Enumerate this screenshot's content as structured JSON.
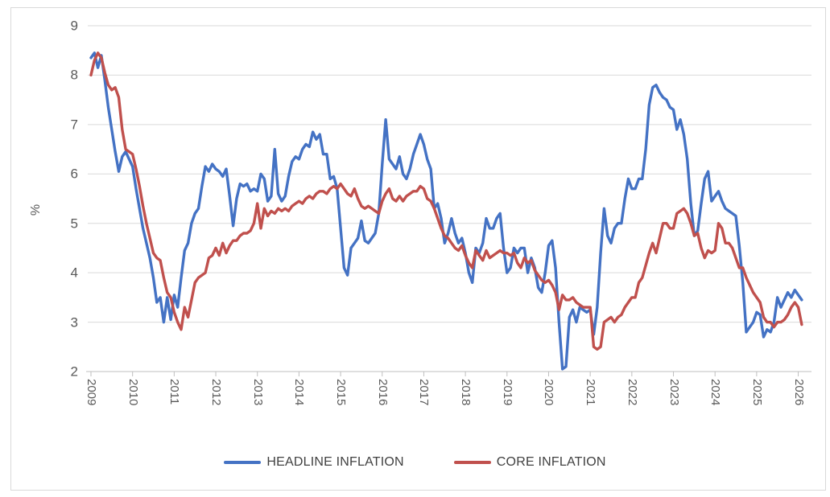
{
  "chart_data": {
    "type": "line",
    "title": "",
    "ylabel": "%",
    "x_start": "2009-01",
    "frequency": "monthly",
    "x_tick_labels": [
      "2009",
      "2010",
      "2011",
      "2012",
      "2013",
      "2014",
      "2015",
      "2016",
      "2017",
      "2018",
      "2019",
      "2020",
      "2021",
      "2022",
      "2023",
      "2024",
      "2025",
      "2026"
    ],
    "y_ticks": [
      2,
      3,
      4,
      5,
      6,
      7,
      8,
      9
    ],
    "ylim": [
      2,
      9
    ],
    "grid": "horizontal",
    "legend_position": "bottom",
    "series": [
      {
        "name": "HEADLINE INFLATION",
        "color": "#4472C4",
        "values": [
          8.35,
          8.45,
          8.15,
          8.4,
          7.9,
          7.35,
          6.9,
          6.45,
          6.05,
          6.35,
          6.45,
          6.3,
          6.15,
          5.7,
          5.3,
          4.9,
          4.6,
          4.3,
          3.9,
          3.4,
          3.5,
          3.0,
          3.5,
          3.05,
          3.55,
          3.3,
          3.9,
          4.45,
          4.6,
          5.0,
          5.2,
          5.3,
          5.75,
          6.15,
          6.05,
          6.2,
          6.1,
          6.05,
          5.95,
          6.1,
          5.55,
          4.95,
          5.5,
          5.8,
          5.75,
          5.8,
          5.65,
          5.7,
          5.65,
          6.0,
          5.9,
          5.45,
          5.55,
          6.5,
          5.6,
          5.45,
          5.55,
          5.95,
          6.25,
          6.35,
          6.3,
          6.5,
          6.6,
          6.55,
          6.85,
          6.7,
          6.8,
          6.4,
          6.4,
          5.9,
          5.95,
          5.7,
          4.9,
          4.1,
          3.95,
          4.5,
          4.6,
          4.7,
          5.05,
          4.65,
          4.6,
          4.7,
          4.8,
          5.2,
          6.2,
          7.1,
          6.3,
          6.2,
          6.1,
          6.35,
          6.0,
          5.9,
          6.1,
          6.4,
          6.6,
          6.8,
          6.6,
          6.3,
          6.1,
          5.3,
          5.4,
          5.1,
          4.6,
          4.8,
          5.1,
          4.8,
          4.6,
          4.7,
          4.4,
          4.0,
          3.8,
          4.5,
          4.4,
          4.6,
          5.1,
          4.9,
          4.9,
          5.1,
          5.2,
          4.5,
          4.0,
          4.1,
          4.5,
          4.4,
          4.5,
          4.5,
          4.0,
          4.3,
          4.1,
          3.7,
          3.6,
          4.0,
          4.55,
          4.65,
          4.1,
          3.0,
          2.05,
          2.1,
          3.1,
          3.25,
          3.0,
          3.3,
          3.25,
          3.2,
          3.25,
          2.75,
          3.3,
          4.4,
          5.3,
          4.75,
          4.6,
          4.9,
          5.0,
          5.0,
          5.5,
          5.9,
          5.7,
          5.7,
          5.9,
          5.9,
          6.5,
          7.4,
          7.75,
          7.8,
          7.65,
          7.55,
          7.5,
          7.35,
          7.3,
          6.9,
          7.1,
          6.8,
          6.3,
          5.4,
          4.75,
          4.85,
          5.4,
          5.9,
          6.05,
          5.45,
          5.55,
          5.65,
          5.45,
          5.3,
          5.25,
          5.2,
          5.15,
          4.55,
          3.8,
          2.8,
          2.9,
          3.0,
          3.2,
          3.15,
          2.7,
          2.85,
          2.8,
          3.0,
          3.5,
          3.3,
          3.45,
          3.6,
          3.5,
          3.65,
          3.55,
          3.45
        ]
      },
      {
        "name": "CORE INFLATION",
        "color": "#C0504D",
        "values": [
          8.0,
          8.3,
          8.45,
          8.35,
          8.05,
          7.8,
          7.7,
          7.75,
          7.55,
          6.9,
          6.5,
          6.45,
          6.4,
          6.1,
          5.75,
          5.35,
          5.0,
          4.7,
          4.4,
          4.3,
          4.25,
          3.9,
          3.6,
          3.5,
          3.2,
          3.0,
          2.85,
          3.3,
          3.1,
          3.45,
          3.8,
          3.9,
          3.95,
          4.0,
          4.3,
          4.35,
          4.5,
          4.35,
          4.6,
          4.4,
          4.55,
          4.65,
          4.65,
          4.75,
          4.8,
          4.8,
          4.85,
          5.0,
          5.4,
          4.9,
          5.3,
          5.15,
          5.25,
          5.2,
          5.3,
          5.25,
          5.3,
          5.25,
          5.35,
          5.4,
          5.45,
          5.4,
          5.5,
          5.55,
          5.5,
          5.6,
          5.65,
          5.65,
          5.6,
          5.7,
          5.75,
          5.7,
          5.8,
          5.7,
          5.6,
          5.55,
          5.7,
          5.5,
          5.35,
          5.3,
          5.35,
          5.3,
          5.25,
          5.2,
          5.45,
          5.6,
          5.7,
          5.5,
          5.45,
          5.55,
          5.45,
          5.55,
          5.6,
          5.65,
          5.65,
          5.75,
          5.7,
          5.5,
          5.45,
          5.3,
          5.1,
          4.9,
          4.75,
          4.7,
          4.6,
          4.5,
          4.45,
          4.55,
          4.35,
          4.2,
          4.1,
          4.45,
          4.35,
          4.25,
          4.45,
          4.3,
          4.35,
          4.4,
          4.45,
          4.4,
          4.4,
          4.35,
          4.4,
          4.2,
          4.1,
          4.3,
          4.2,
          4.25,
          4.05,
          3.95,
          3.85,
          3.8,
          3.85,
          3.75,
          3.6,
          3.25,
          3.55,
          3.45,
          3.45,
          3.5,
          3.4,
          3.35,
          3.3,
          3.3,
          3.3,
          2.5,
          2.45,
          2.5,
          3.0,
          3.05,
          3.1,
          3.0,
          3.1,
          3.15,
          3.3,
          3.4,
          3.5,
          3.5,
          3.8,
          3.9,
          4.15,
          4.4,
          4.6,
          4.4,
          4.7,
          5.0,
          5.0,
          4.9,
          4.9,
          5.2,
          5.25,
          5.3,
          5.2,
          5.0,
          4.75,
          4.8,
          4.5,
          4.3,
          4.45,
          4.4,
          4.45,
          5.0,
          4.9,
          4.6,
          4.6,
          4.5,
          4.3,
          4.1,
          4.1,
          3.9,
          3.75,
          3.6,
          3.5,
          3.4,
          3.1,
          3.0,
          3.0,
          2.9,
          3.0,
          3.0,
          3.05,
          3.15,
          3.3,
          3.4,
          3.3,
          2.95
        ]
      }
    ]
  },
  "colors": {
    "gridline": "#d9d9d9",
    "axis_line": "#bfbfbf",
    "tick_text": "#595959",
    "legend_text": "#404040",
    "frame_border": "#d9d9d9"
  }
}
